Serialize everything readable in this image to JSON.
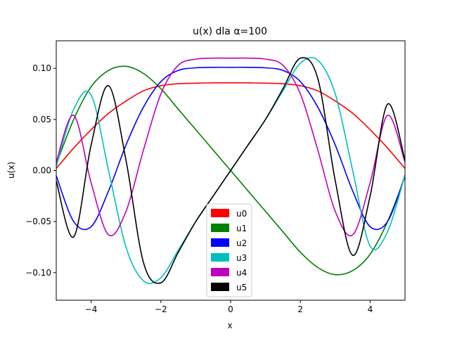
{
  "chart_data": {
    "type": "line",
    "title": "u(x) dla α=100",
    "xlabel": "x",
    "ylabel": "u(x)",
    "xlim": [
      -5,
      5
    ],
    "ylim": [
      -0.127,
      0.127
    ],
    "xticks": [
      -4,
      -2,
      0,
      2,
      4
    ],
    "xtick_labels": [
      "−4",
      "−2",
      "0",
      "2",
      "4"
    ],
    "yticks": [
      -0.1,
      -0.05,
      0.0,
      0.05,
      0.1
    ],
    "ytick_labels": [
      "−0.10",
      "−0.05",
      "0.00",
      "0.05",
      "0.10"
    ],
    "grid": false,
    "legend_position": "bottom-center",
    "x": [
      -5,
      -4.5,
      -4,
      -3.5,
      -3,
      -2.5,
      -2,
      -1.5,
      -1,
      -0.5,
      0,
      0.5,
      1,
      1.5,
      2,
      2.5,
      3,
      3.5,
      4,
      4.5,
      5
    ],
    "series": [
      {
        "name": "u0",
        "color": "#ff0000",
        "values": [
          0.002,
          0.022,
          0.04,
          0.056,
          0.068,
          0.078,
          0.083,
          0.085,
          0.0855,
          0.0858,
          0.0858,
          0.0858,
          0.0855,
          0.085,
          0.083,
          0.078,
          0.068,
          0.056,
          0.04,
          0.022,
          0.002
        ]
      },
      {
        "name": "u1",
        "color": "#008000",
        "values": [
          0.006,
          0.05,
          0.082,
          0.098,
          0.102,
          0.095,
          0.08,
          0.06,
          0.04,
          0.02,
          0.0,
          -0.02,
          -0.04,
          -0.06,
          -0.08,
          -0.095,
          -0.102,
          -0.098,
          -0.082,
          -0.05,
          -0.006
        ]
      },
      {
        "name": "u2",
        "color": "#0000ff",
        "values": [
          -0.005,
          -0.05,
          -0.055,
          -0.02,
          0.025,
          0.062,
          0.087,
          0.098,
          0.1005,
          0.101,
          0.101,
          0.101,
          0.1005,
          0.098,
          0.087,
          0.062,
          0.025,
          -0.02,
          -0.055,
          -0.05,
          -0.005
        ]
      },
      {
        "name": "u3",
        "color": "#00bfbf",
        "values": [
          0.004,
          0.06,
          0.074,
          0.0,
          -0.075,
          -0.108,
          -0.105,
          -0.078,
          -0.05,
          -0.025,
          0.0,
          0.025,
          0.05,
          0.078,
          0.105,
          0.108,
          0.075,
          0.0,
          -0.074,
          -0.06,
          -0.004
        ]
      },
      {
        "name": "u4",
        "color": "#bf00bf",
        "values": [
          0.008,
          0.054,
          -0.012,
          -0.063,
          -0.04,
          0.02,
          0.075,
          0.103,
          0.109,
          0.11,
          0.11,
          0.11,
          0.109,
          0.103,
          0.075,
          0.02,
          -0.04,
          -0.063,
          -0.012,
          0.054,
          0.008
        ]
      },
      {
        "name": "u5",
        "color": "#000000",
        "values": [
          -0.01,
          -0.065,
          0.025,
          0.083,
          0.01,
          -0.09,
          -0.11,
          -0.08,
          -0.05,
          -0.025,
          0.0,
          0.025,
          0.05,
          0.08,
          0.11,
          0.09,
          -0.01,
          -0.083,
          -0.025,
          0.065,
          0.01
        ]
      }
    ]
  }
}
